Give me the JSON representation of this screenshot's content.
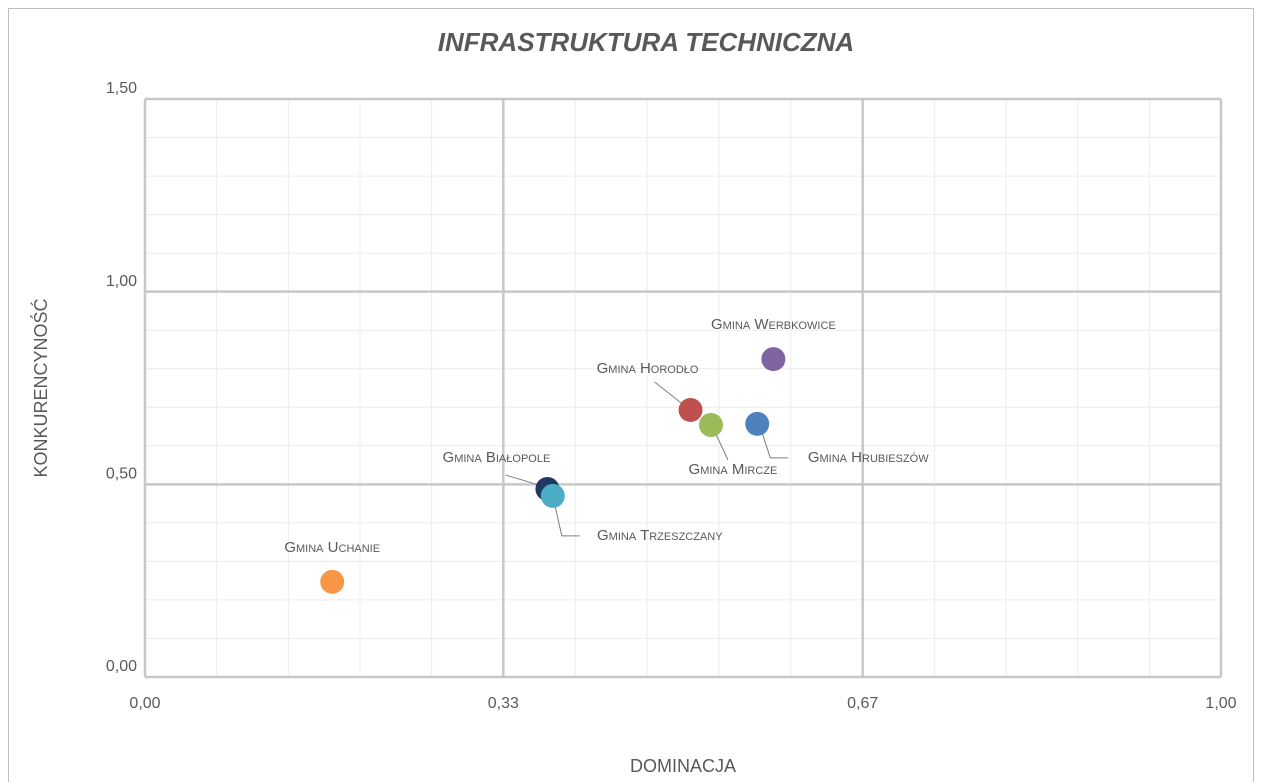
{
  "chart_data": {
    "type": "scatter",
    "title": "INFRASTRUKTURA TECHNICZNA",
    "xlabel": "DOMINACJA",
    "ylabel": "KONKURENCYNOŚĆ",
    "xlim": [
      0,
      1
    ],
    "ylim": [
      0,
      1.5
    ],
    "xticks": [
      {
        "value": 0,
        "label": "0,00"
      },
      {
        "value": 0.333,
        "label": "0,33"
      },
      {
        "value": 0.667,
        "label": "0,67"
      },
      {
        "value": 1,
        "label": "1,00"
      }
    ],
    "yticks": [
      {
        "value": 0,
        "label": "0,00"
      },
      {
        "value": 0.5,
        "label": "0,50"
      },
      {
        "value": 1,
        "label": "1,00"
      },
      {
        "value": 1.5,
        "label": "1,50"
      }
    ],
    "grid": true,
    "minor_divisions": [
      5,
      5
    ],
    "series": [
      {
        "name": "Gmina Uchanie",
        "color": "#f79646",
        "x": [
          0.174
        ],
        "values": [
          0.247
        ]
      },
      {
        "name": "Gmina Białopole",
        "color": "#1f3864",
        "x": [
          0.374
        ],
        "values": [
          0.488
        ]
      },
      {
        "name": "Gmina Trzeszczany",
        "color": "#4bacc6",
        "x": [
          0.379
        ],
        "values": [
          0.47
        ]
      },
      {
        "name": "Gmina Horodło",
        "color": "#c0504d",
        "x": [
          0.507
        ],
        "values": [
          0.693
        ]
      },
      {
        "name": "Gmina Mircze",
        "color": "#9bbb59",
        "x": [
          0.526
        ],
        "values": [
          0.654
        ]
      },
      {
        "name": "Gmina Hrubieszów",
        "color": "#4f81bd",
        "x": [
          0.569
        ],
        "values": [
          0.657
        ]
      },
      {
        "name": "Gmina Werbkowice",
        "color": "#8064a2",
        "x": [
          0.584
        ],
        "values": [
          0.825
        ]
      }
    ]
  }
}
